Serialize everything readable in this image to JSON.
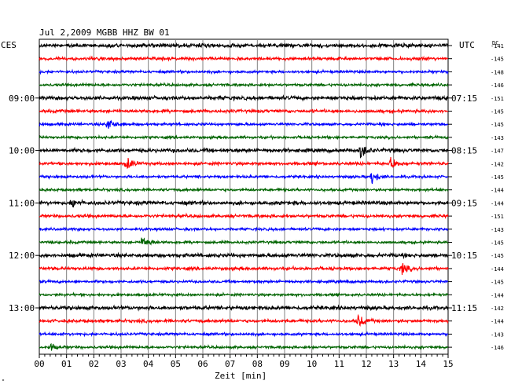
{
  "header": {
    "title": "Jul 2,2009   MGBB HHZ BW 01",
    "left_timezone": "CES",
    "right_timezone": "UTC",
    "dc_label": "DC"
  },
  "footer": {
    "xlabel": "Zeit [min]",
    "corner_mark": "\""
  },
  "colors": {
    "black": "#000000",
    "red": "#ff0000",
    "blue": "#0000ff",
    "green": "#006400",
    "grid": "#000000"
  },
  "chart_data": {
    "type": "line",
    "title": "Jul 2,2009   MGBB HHZ BW 01",
    "xlabel": "Zeit [min]",
    "ylabel": "",
    "xlim": [
      0,
      15
    ],
    "x_ticks": [
      "00",
      "01",
      "02",
      "03",
      "04",
      "05",
      "06",
      "07",
      "08",
      "09",
      "10",
      "11",
      "12",
      "13",
      "14",
      "15"
    ],
    "grid": "vertical",
    "trace_color_cycle": [
      "black",
      "red",
      "blue",
      "green"
    ],
    "left_time_labels": [
      {
        "row": 4,
        "label": "09:00"
      },
      {
        "row": 8,
        "label": "10:00"
      },
      {
        "row": 12,
        "label": "11:00"
      },
      {
        "row": 16,
        "label": "12:00"
      },
      {
        "row": 20,
        "label": "13:00"
      }
    ],
    "right_time_labels": [
      {
        "row": 4,
        "label": "07:15"
      },
      {
        "row": 8,
        "label": "08:15"
      },
      {
        "row": 12,
        "label": "09:15"
      },
      {
        "row": 16,
        "label": "10:15"
      },
      {
        "row": 20,
        "label": "11:15"
      }
    ],
    "dc_offsets": [
      "-141",
      "-145",
      "-148",
      "-146",
      "-151",
      "-145",
      "-145",
      "-143",
      "-147",
      "-142",
      "-145",
      "-144",
      "-144",
      "-151",
      "-143",
      "-145",
      "-145",
      "-144",
      "-145",
      "-144",
      "-142",
      "-144",
      "-143",
      "-146"
    ],
    "events": [
      {
        "row": 6,
        "minute": 2.5,
        "amplitude": 2.2
      },
      {
        "row": 9,
        "minute": 3.2,
        "amplitude": 1.8
      },
      {
        "row": 10,
        "minute": 12.2,
        "amplitude": 2.0
      },
      {
        "row": 9,
        "minute": 12.9,
        "amplitude": 1.8
      },
      {
        "row": 8,
        "minute": 11.8,
        "amplitude": 2.0
      },
      {
        "row": 12,
        "minute": 1.2,
        "amplitude": 1.5
      },
      {
        "row": 15,
        "minute": 3.8,
        "amplitude": 2.2
      },
      {
        "row": 17,
        "minute": 13.3,
        "amplitude": 1.5
      },
      {
        "row": 21,
        "minute": 11.7,
        "amplitude": 2.0
      },
      {
        "row": 23,
        "minute": 0.4,
        "amplitude": 1.3
      }
    ]
  }
}
